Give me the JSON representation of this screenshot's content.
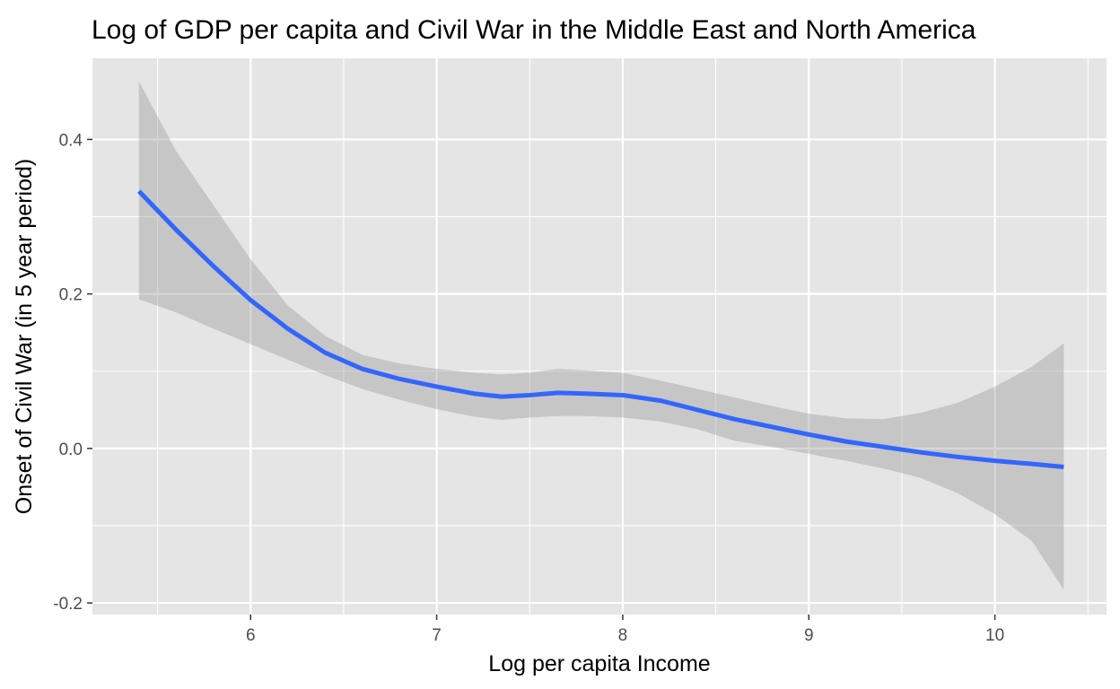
{
  "chart_data": {
    "type": "line",
    "title": "Log of GDP per capita and Civil War in the Middle East and North America",
    "xlabel": "Log per capita Income",
    "ylabel": "Onset of Civil War (in 5 year period)",
    "xlim": [
      5.15,
      10.6
    ],
    "ylim": [
      -0.215,
      0.505
    ],
    "x_ticks": [
      6,
      7,
      8,
      9,
      10
    ],
    "x_tick_labels": [
      "6",
      "7",
      "8",
      "9",
      "10"
    ],
    "y_ticks": [
      -0.2,
      0.0,
      0.2,
      0.4
    ],
    "y_tick_labels": [
      "-0.2",
      "0.0",
      "0.2",
      "0.4"
    ],
    "x_minor_ticks": [
      5.5,
      6.5,
      7.5,
      8.5,
      9.5,
      10.5
    ],
    "y_minor_ticks": [
      -0.1,
      0.1,
      0.3
    ],
    "grid": true,
    "legend": "none",
    "series": [
      {
        "type": "smooth",
        "x": [
          5.4,
          5.6,
          5.8,
          6.0,
          6.2,
          6.4,
          6.6,
          6.8,
          7.0,
          7.2,
          7.35,
          7.5,
          7.65,
          7.8,
          8.0,
          8.2,
          8.4,
          8.6,
          8.8,
          9.0,
          9.2,
          9.4,
          9.6,
          9.8,
          10.0,
          10.2,
          10.37
        ],
        "y": [
          0.333,
          0.283,
          0.236,
          0.192,
          0.155,
          0.124,
          0.103,
          0.09,
          0.08,
          0.071,
          0.067,
          0.069,
          0.072,
          0.071,
          0.069,
          0.062,
          0.05,
          0.038,
          0.028,
          0.018,
          0.009,
          0.002,
          -0.005,
          -0.011,
          -0.016,
          -0.02,
          -0.024
        ],
        "ci_lower": [
          0.193,
          0.176,
          0.155,
          0.135,
          0.115,
          0.095,
          0.077,
          0.063,
          0.051,
          0.041,
          0.037,
          0.04,
          0.042,
          0.042,
          0.04,
          0.035,
          0.025,
          0.01,
          0.002,
          -0.007,
          -0.016,
          -0.026,
          -0.038,
          -0.058,
          -0.085,
          -0.12,
          -0.183
        ],
        "ci_upper": [
          0.475,
          0.385,
          0.315,
          0.245,
          0.185,
          0.146,
          0.121,
          0.11,
          0.103,
          0.098,
          0.096,
          0.098,
          0.103,
          0.101,
          0.098,
          0.088,
          0.077,
          0.066,
          0.055,
          0.045,
          0.039,
          0.038,
          0.046,
          0.059,
          0.08,
          0.106,
          0.136
        ]
      }
    ],
    "colors": {
      "panel_background": "#e5e5e5",
      "grid": "#ffffff",
      "line": "#3366ff",
      "ribbon": "#999999",
      "tick_text": "#4d4d4d",
      "tick_mark": "#333333",
      "title_text": "#000000"
    }
  }
}
